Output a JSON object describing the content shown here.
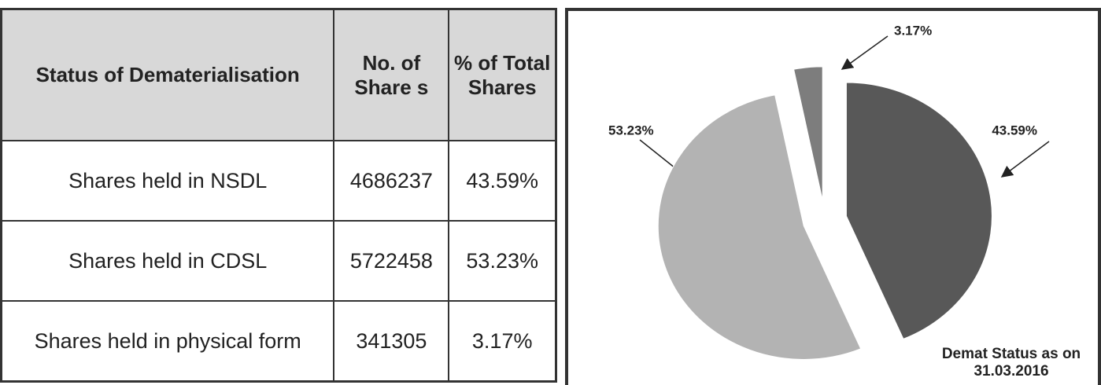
{
  "table": {
    "header": [
      "Status of Dematerialisation",
      "No. of Share s",
      "% of Total Shares"
    ],
    "rows": [
      [
        "Shares held in NSDL",
        "4686237",
        "43.59%"
      ],
      [
        "Shares held in CDSL",
        "5722458",
        "53.23%"
      ],
      [
        "Shares held in physical form",
        "341305",
        "3.17%"
      ]
    ]
  },
  "chart_data": {
    "type": "pie",
    "title": "Demat Status as on 31.03.2016",
    "values": [
      43.59,
      53.23,
      3.17
    ],
    "value_labels": [
      "43.59%",
      "53.23%",
      "3.17%"
    ],
    "colors": [
      "#585858",
      "#b3b3b3",
      "#7d7d7d"
    ]
  }
}
